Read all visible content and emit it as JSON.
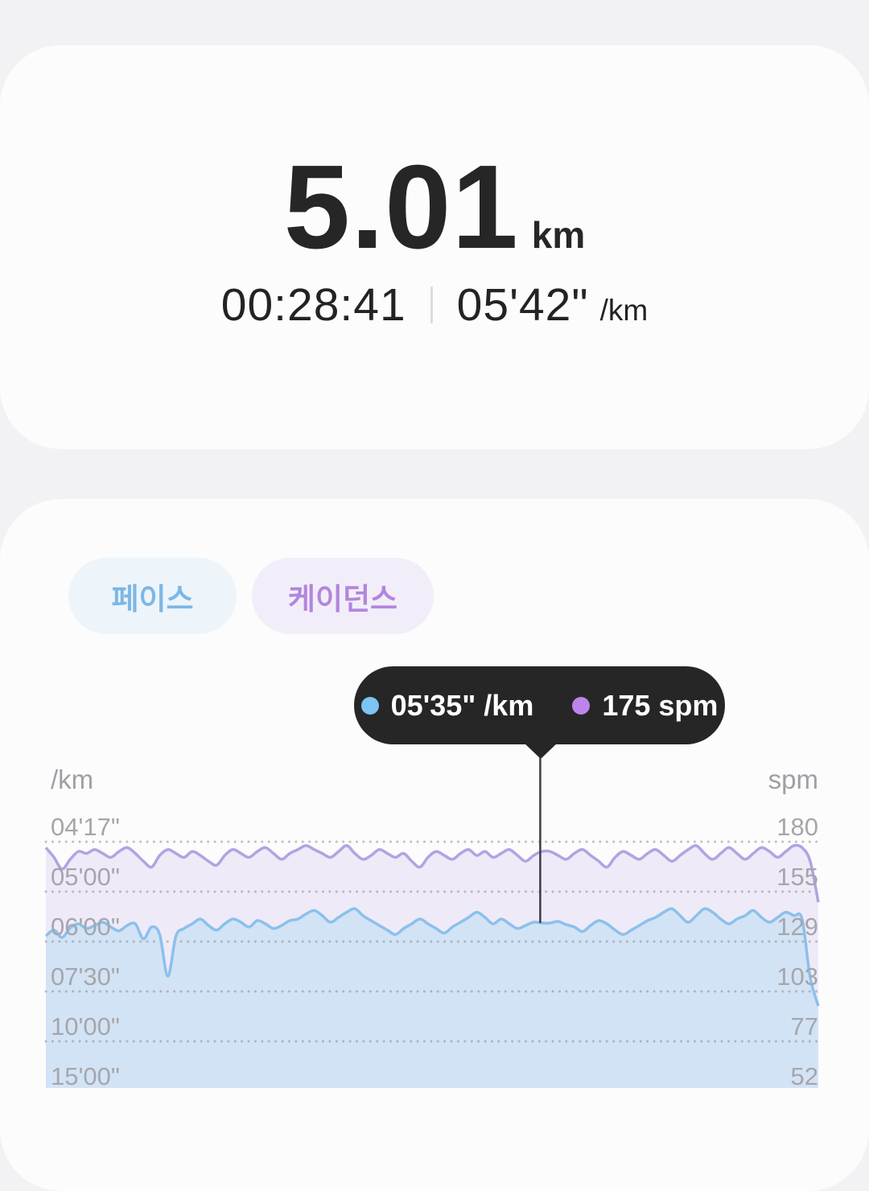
{
  "summary": {
    "distance": "5.01",
    "distance_unit": "km",
    "duration": "00:28:41",
    "avg_pace": "05'42\"",
    "avg_pace_unit": "/km"
  },
  "tabs": [
    {
      "label": "페이스",
      "text_color": "#7db7e6",
      "bg_color": "#edf5fb"
    },
    {
      "label": "케이던스",
      "text_color": "#b286de",
      "bg_color": "#f2eef9"
    }
  ],
  "tooltip": {
    "pace_label": "05'35\" /km",
    "cadence_label": "175 spm",
    "pace_dot_color": "#7cc4f6",
    "cadence_dot_color": "#bd84ec",
    "bg_color": "#262626"
  },
  "chart_data": {
    "type": "area",
    "legend": "none",
    "grid": "dotted-horizontal",
    "left_axis": {
      "label": "/km",
      "ticks": [
        "04'17\"",
        "05'00\"",
        "06'00\"",
        "07'30\"",
        "10'00\"",
        "15'00\""
      ],
      "tick_seconds": [
        257,
        300,
        360,
        450,
        600,
        900
      ],
      "scale": "linear-in-speed"
    },
    "right_axis": {
      "label": "spm",
      "ticks": [
        180,
        155,
        129,
        103,
        77,
        52
      ]
    },
    "cursor": {
      "x_fraction": 0.64,
      "pace": "05'35\"",
      "pace_seconds": 335,
      "cadence_spm": 175
    },
    "series": [
      {
        "name": "cadence",
        "unit": "spm",
        "line_color": "#b2a3e2",
        "fill_color": "#efeaf8",
        "values": [
          177,
          172,
          166,
          171,
          175,
          174,
          176,
          174,
          172,
          175,
          177,
          174,
          170,
          167,
          173,
          176,
          174,
          172,
          175,
          173,
          170,
          168,
          173,
          176,
          174,
          172,
          175,
          177,
          174,
          171,
          174,
          176,
          178,
          176,
          174,
          172,
          175,
          178,
          174,
          171,
          173,
          176,
          174,
          172,
          174,
          170,
          167,
          172,
          175,
          173,
          171,
          174,
          176,
          173,
          175,
          172,
          174,
          176,
          173,
          170,
          173,
          175,
          175,
          173,
          171,
          174,
          176,
          173,
          170,
          167,
          172,
          175,
          173,
          171,
          174,
          176,
          173,
          170,
          173,
          176,
          178,
          174,
          171,
          174,
          177,
          174,
          171,
          174,
          177,
          175,
          172,
          175,
          178,
          177,
          170,
          149
        ]
      },
      {
        "name": "pace",
        "unit": "seconds_per_km",
        "line_color": "#8cc0ec",
        "fill_color": "#d2e3f6",
        "values": [
          352,
          344,
          354,
          341,
          336,
          342,
          338,
          334,
          340,
          345,
          338,
          336,
          356,
          340,
          350,
          418,
          352,
          342,
          336,
          330,
          338,
          344,
          336,
          330,
          334,
          340,
          332,
          336,
          342,
          338,
          332,
          330,
          324,
          320,
          326,
          334,
          328,
          322,
          318,
          326,
          332,
          338,
          344,
          350,
          342,
          336,
          330,
          336,
          342,
          348,
          340,
          334,
          328,
          322,
          328,
          336,
          330,
          336,
          342,
          338,
          334,
          335,
          335,
          333,
          337,
          340,
          346,
          338,
          332,
          336,
          344,
          350,
          344,
          338,
          332,
          328,
          322,
          318,
          326,
          334,
          326,
          318,
          322,
          330,
          336,
          330,
          326,
          320,
          328,
          334,
          328,
          322,
          326,
          330,
          420,
          485
        ]
      }
    ]
  }
}
